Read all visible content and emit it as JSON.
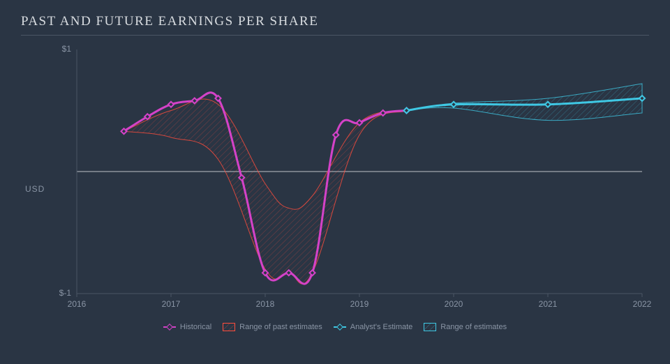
{
  "title": "PAST AND FUTURE EARNINGS PER SHARE",
  "chart": {
    "type": "line-area",
    "background_color": "#2a3544",
    "grid_color": "#4a5565",
    "zero_line_color": "#d8dce0",
    "text_color": "#8a95a5",
    "title_fontsize": 19,
    "tick_fontsize": 12,
    "legend_fontsize": 11,
    "x_domain": [
      2016,
      2022
    ],
    "y_domain": [
      -1,
      1
    ],
    "y_axis_title": "USD",
    "y_ticks": [
      {
        "v": 1,
        "label": "$1"
      },
      {
        "v": -1,
        "label": "$-1"
      }
    ],
    "x_ticks": [
      {
        "v": 2016,
        "label": "2016"
      },
      {
        "v": 2017,
        "label": "2017"
      },
      {
        "v": 2018,
        "label": "2018"
      },
      {
        "v": 2019,
        "label": "2019"
      },
      {
        "v": 2020,
        "label": "2020"
      },
      {
        "v": 2021,
        "label": "2021"
      },
      {
        "v": 2022,
        "label": "2022"
      }
    ],
    "series": {
      "past_range": {
        "label": "Range of past estimates",
        "color": "#ff4d3d",
        "fill_opacity": 0.15,
        "hatch": true,
        "upper": [
          {
            "x": 2016.5,
            "y": 0.33
          },
          {
            "x": 2017.0,
            "y": 0.5
          },
          {
            "x": 2017.5,
            "y": 0.55
          },
          {
            "x": 2018.0,
            "y": -0.1
          },
          {
            "x": 2018.25,
            "y": -0.3
          },
          {
            "x": 2018.5,
            "y": -0.2
          },
          {
            "x": 2019.0,
            "y": 0.4
          },
          {
            "x": 2019.5,
            "y": 0.5
          }
        ],
        "lower": [
          {
            "x": 2016.5,
            "y": 0.33
          },
          {
            "x": 2017.0,
            "y": 0.28
          },
          {
            "x": 2017.5,
            "y": 0.1
          },
          {
            "x": 2018.0,
            "y": -0.8
          },
          {
            "x": 2018.25,
            "y": -0.83
          },
          {
            "x": 2018.5,
            "y": -0.83
          },
          {
            "x": 2019.0,
            "y": 0.3
          },
          {
            "x": 2019.5,
            "y": 0.5
          }
        ]
      },
      "historical": {
        "label": "Historical",
        "color": "#d442c8",
        "line_width": 3,
        "marker": "diamond",
        "marker_size": 8,
        "points": [
          {
            "x": 2016.5,
            "y": 0.33
          },
          {
            "x": 2016.75,
            "y": 0.45
          },
          {
            "x": 2017.0,
            "y": 0.55
          },
          {
            "x": 2017.25,
            "y": 0.58
          },
          {
            "x": 2017.5,
            "y": 0.6
          },
          {
            "x": 2017.75,
            "y": -0.05
          },
          {
            "x": 2018.0,
            "y": -0.83
          },
          {
            "x": 2018.25,
            "y": -0.83
          },
          {
            "x": 2018.5,
            "y": -0.83
          },
          {
            "x": 2018.75,
            "y": 0.3
          },
          {
            "x": 2019.0,
            "y": 0.4
          },
          {
            "x": 2019.25,
            "y": 0.48
          },
          {
            "x": 2019.5,
            "y": 0.5
          }
        ]
      },
      "future_range": {
        "label": "Range of estimates",
        "color": "#3fc8e4",
        "fill_opacity": 0.15,
        "hatch": true,
        "upper": [
          {
            "x": 2019.5,
            "y": 0.5
          },
          {
            "x": 2020.0,
            "y": 0.56
          },
          {
            "x": 2021.0,
            "y": 0.6
          },
          {
            "x": 2022.0,
            "y": 0.72
          }
        ],
        "lower": [
          {
            "x": 2019.5,
            "y": 0.5
          },
          {
            "x": 2020.0,
            "y": 0.52
          },
          {
            "x": 2021.0,
            "y": 0.42
          },
          {
            "x": 2022.0,
            "y": 0.48
          }
        ]
      },
      "estimate": {
        "label": "Analyst's Estimate",
        "color": "#3fc8e4",
        "line_width": 3,
        "marker": "diamond",
        "marker_size": 8,
        "points": [
          {
            "x": 2019.5,
            "y": 0.5
          },
          {
            "x": 2020.0,
            "y": 0.55
          },
          {
            "x": 2021.0,
            "y": 0.55
          },
          {
            "x": 2022.0,
            "y": 0.6
          }
        ]
      }
    },
    "legend_order": [
      "historical",
      "past_range",
      "estimate",
      "future_range"
    ]
  }
}
